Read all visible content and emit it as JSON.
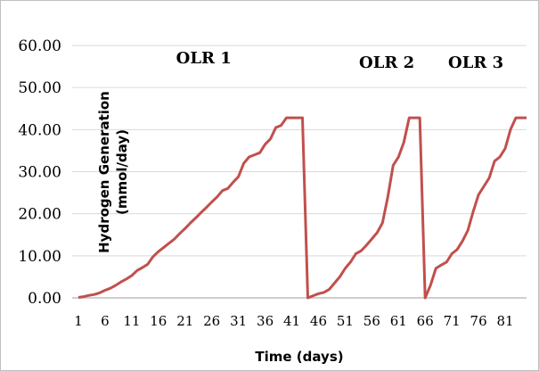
{
  "chart_data": {
    "type": "line",
    "title": "",
    "xlabel": "Time (days)",
    "ylabel_lines": [
      "Hydrogen Generation",
      "(mmol/day)"
    ],
    "ylim": [
      0,
      60
    ],
    "xlim": [
      1,
      85
    ],
    "grid": "horizontal",
    "yticks": [
      "0.00",
      "10.00",
      "20.00",
      "30.00",
      "40.00",
      "50.00",
      "60.00"
    ],
    "xticks": [
      "1",
      "6",
      "11",
      "16",
      "21",
      "26",
      "31",
      "36",
      "41",
      "46",
      "51",
      "56",
      "61",
      "66",
      "71",
      "76",
      "81"
    ],
    "xtick_values": [
      1,
      6,
      11,
      16,
      21,
      26,
      31,
      36,
      41,
      46,
      51,
      56,
      61,
      66,
      71,
      76,
      81
    ],
    "annotations": [
      {
        "text": "OLR 1",
        "x": 24.5,
        "y": 57
      },
      {
        "text": "OLR 2",
        "x": 58.8,
        "y": 56
      },
      {
        "text": "OLR 3",
        "x": 75.5,
        "y": 56
      }
    ],
    "series": [
      {
        "color": "#c0504d",
        "x": [
          1,
          2,
          3,
          4,
          5,
          6,
          7,
          8,
          9,
          10,
          11,
          12,
          13,
          14,
          15,
          16,
          17,
          18,
          19,
          20,
          21,
          22,
          23,
          24,
          25,
          26,
          27,
          28,
          29,
          30,
          31,
          32,
          33,
          34,
          35,
          36,
          37,
          38,
          39,
          40,
          41,
          42,
          43,
          44,
          45,
          46,
          47,
          48,
          49,
          50,
          51,
          52,
          53,
          54,
          55,
          56,
          57,
          58,
          59,
          60,
          61,
          62,
          63,
          64,
          65,
          66,
          67,
          68,
          69,
          70,
          71,
          72,
          73,
          74,
          75,
          76,
          77,
          78,
          79,
          80,
          81,
          82,
          83,
          84,
          85
        ],
        "values": [
          0.1,
          0.3,
          0.6,
          0.8,
          1.2,
          1.8,
          2.3,
          3.0,
          3.8,
          4.5,
          5.3,
          6.5,
          7.2,
          8.0,
          9.8,
          11.0,
          12.0,
          13.0,
          14.0,
          15.3,
          16.5,
          17.8,
          19.0,
          20.3,
          21.5,
          22.8,
          24.0,
          25.5,
          26.0,
          27.5,
          28.8,
          32.0,
          33.5,
          34.0,
          34.5,
          36.5,
          37.8,
          40.5,
          41.0,
          42.8,
          42.8,
          42.8,
          42.8,
          0.0,
          0.5,
          1.0,
          1.3,
          2.0,
          3.5,
          5.0,
          7.0,
          8.5,
          10.5,
          11.2,
          12.5,
          14.0,
          15.5,
          17.8,
          24.0,
          31.5,
          33.5,
          37.0,
          42.8,
          42.8,
          42.8,
          0.0,
          3.0,
          7.0,
          7.8,
          8.5,
          10.5,
          11.5,
          13.5,
          16.0,
          20.5,
          24.5,
          26.5,
          28.5,
          32.5,
          33.5,
          35.5,
          40.0,
          42.8,
          42.8,
          42.8
        ]
      }
    ]
  }
}
